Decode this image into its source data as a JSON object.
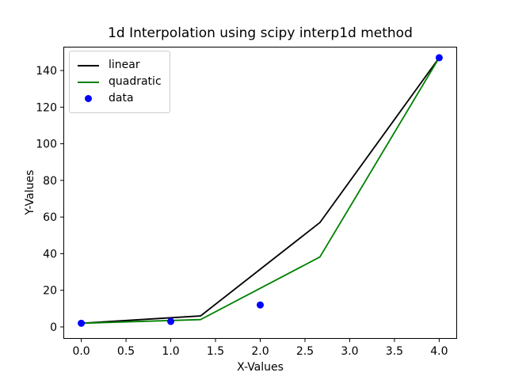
{
  "chart_data": {
    "type": "line",
    "title": "1d Interpolation using scipy interp1d method",
    "xlabel": "X-Values",
    "ylabel": "Y-Values",
    "grid": false,
    "legend_position": "upper left",
    "xlim": [
      -0.2,
      4.2
    ],
    "ylim": [
      -6.5,
      153
    ],
    "xticks": {
      "values": [
        0,
        0.5,
        1,
        1.5,
        2,
        2.5,
        3,
        3.5,
        4
      ],
      "labels": [
        "0.0",
        "0.5",
        "1.0",
        "1.5",
        "2.0",
        "2.5",
        "3.0",
        "3.5",
        "4.0"
      ]
    },
    "yticks": {
      "values": [
        0,
        20,
        40,
        60,
        80,
        100,
        120,
        140
      ],
      "labels": [
        "0",
        "20",
        "40",
        "60",
        "80",
        "100",
        "120",
        "140"
      ]
    },
    "series": [
      {
        "name": "linear",
        "color": "#000000",
        "x": [
          0,
          1.333,
          2.667,
          4
        ],
        "y": [
          2,
          6,
          57,
          147
        ]
      },
      {
        "name": "quadratic",
        "color": "#008000",
        "x": [
          0,
          1.333,
          2.667,
          4
        ],
        "y": [
          2,
          4,
          38.2,
          147
        ]
      }
    ],
    "scatter": {
      "name": "data",
      "color": "#0000ff",
      "x": [
        0,
        1,
        2,
        4
      ],
      "y": [
        2,
        3,
        12,
        147
      ]
    }
  }
}
